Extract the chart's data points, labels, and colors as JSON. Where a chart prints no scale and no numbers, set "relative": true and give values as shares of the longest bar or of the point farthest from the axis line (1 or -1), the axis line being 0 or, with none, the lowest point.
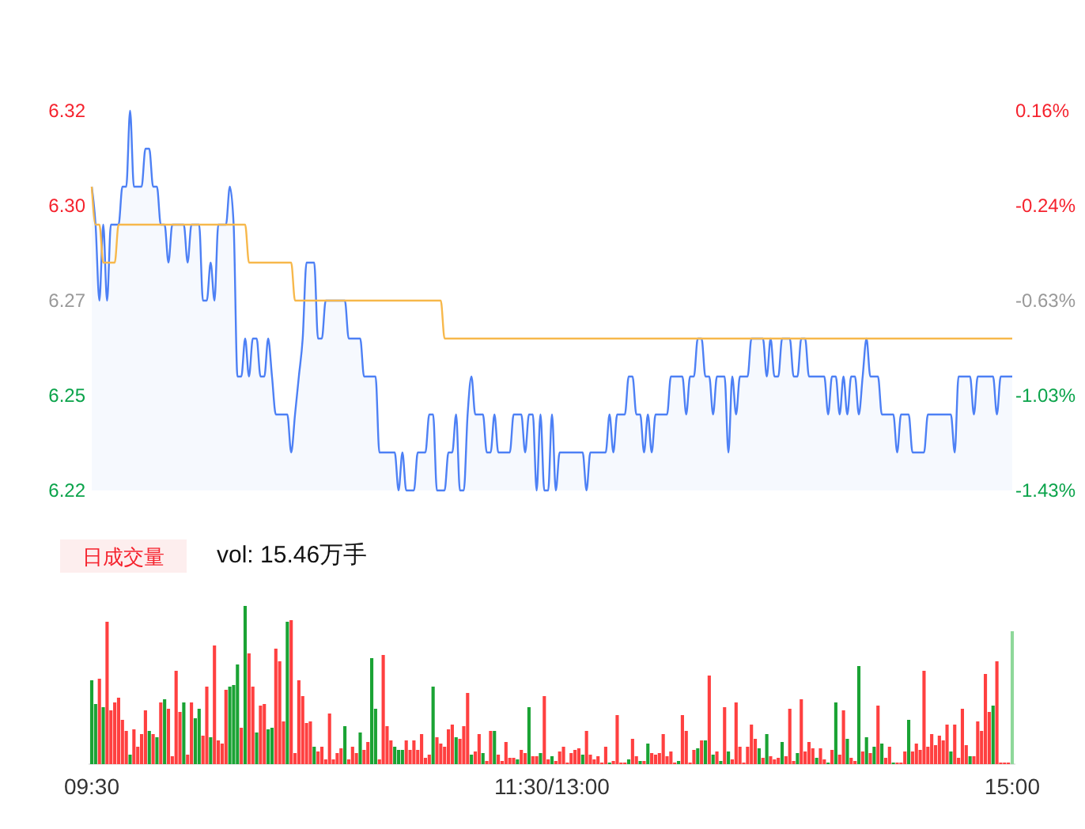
{
  "chart_data": [
    {
      "type": "area",
      "categories": [
        null,
        null,
        null,
        null,
        null,
        null,
        null,
        null,
        null,
        null,
        null,
        null,
        null,
        null,
        null,
        null,
        null,
        null,
        null,
        null,
        null,
        null,
        null,
        null,
        null,
        null,
        null,
        null,
        null,
        null,
        null,
        null,
        null,
        null,
        null,
        null,
        null,
        null,
        null,
        null,
        null,
        null,
        null,
        null,
        null,
        null,
        null,
        null,
        null,
        null,
        null,
        null,
        null,
        null,
        null,
        null,
        null,
        null,
        null,
        null,
        null,
        null,
        null,
        null,
        null,
        null,
        null,
        null,
        null,
        null,
        null,
        null,
        null,
        null,
        null,
        null,
        null,
        null,
        null,
        null,
        null,
        null,
        null,
        null,
        null,
        null,
        null,
        null,
        null,
        null,
        null,
        null,
        null,
        null,
        null,
        null,
        null,
        null,
        null,
        null,
        null,
        null,
        null,
        null,
        null,
        null,
        null,
        null,
        null,
        null,
        null,
        null,
        null,
        null,
        null,
        null,
        null,
        null,
        null,
        null,
        null,
        null,
        null,
        null,
        null,
        null,
        null,
        null,
        null,
        null,
        null,
        null,
        null,
        null,
        null,
        null,
        null,
        null,
        null,
        null,
        null,
        null,
        null,
        null,
        null,
        null,
        null,
        null,
        null,
        null,
        null,
        null,
        null,
        null,
        null,
        null,
        null,
        null,
        null,
        null,
        null,
        null,
        null,
        null,
        null,
        null,
        null,
        null,
        null,
        null,
        null,
        null,
        null,
        null,
        null,
        null,
        null,
        null,
        null,
        null,
        null,
        null,
        null,
        null,
        null,
        null,
        null,
        null,
        null,
        null,
        null,
        null,
        null,
        null,
        null,
        null,
        null,
        null,
        null,
        null,
        null,
        null,
        null,
        null,
        null,
        null,
        null,
        null,
        null,
        null,
        null,
        null,
        null,
        null,
        null,
        null,
        null,
        null,
        null,
        null,
        null,
        null,
        null,
        null,
        null,
        null,
        null,
        null,
        null,
        null,
        null,
        null,
        null,
        null,
        null,
        null,
        null,
        null,
        null,
        null,
        null
      ],
      "ylim": [
        6.22,
        6.32
      ],
      "yticks": [
        6.32,
        {
          "value": 6.295,
          "label": "6.30"
        },
        6.27,
        {
          "value": 6.245,
          "label": "6.25"
        },
        6.22
      ],
      "y2lim": [
        -1.43,
        0.16
      ],
      "y2ticks": [
        {
          "value": 0.16,
          "label": "0.16%"
        },
        {
          "value": -0.2375,
          "label": "-0.24%"
        },
        {
          "value": -0.635,
          "label": "-0.63%"
        },
        {
          "value": -1.0325,
          "label": "-1.03%"
        },
        {
          "value": -1.43,
          "label": "-1.43%"
        }
      ],
      "tick_labels": "y",
      "series": [
        {
          "color": "#4d80f5",
          "values": [
            6.3,
            6.29,
            6.27,
            6.29,
            6.27,
            6.29,
            6.29,
            6.29,
            6.3,
            6.3,
            6.32,
            6.3,
            6.3,
            6.3,
            6.31,
            6.31,
            6.3,
            6.3,
            6.29,
            6.29,
            6.28,
            6.29,
            6.29,
            6.29,
            6.29,
            6.28,
            6.29,
            6.29,
            6.29,
            6.27,
            6.27,
            6.28,
            6.27,
            6.29,
            6.29,
            6.29,
            6.3,
            6.29,
            6.25,
            6.25,
            6.26,
            6.25,
            6.26,
            6.26,
            6.25,
            6.25,
            6.26,
            6.25,
            6.24,
            6.24,
            6.24,
            6.24,
            6.23,
            6.24,
            6.25,
            6.26,
            6.28,
            6.28,
            6.28,
            6.26,
            6.26,
            6.27,
            6.27,
            6.27,
            6.27,
            6.27,
            6.27,
            6.26,
            6.26,
            6.26,
            6.26,
            6.25,
            6.25,
            6.25,
            6.25,
            6.23,
            6.23,
            6.23,
            6.23,
            6.23,
            6.22,
            6.23,
            6.22,
            6.22,
            6.22,
            6.23,
            6.23,
            6.23,
            6.24,
            6.24,
            6.22,
            6.22,
            6.22,
            6.23,
            6.23,
            6.24,
            6.22,
            6.22,
            6.24,
            6.25,
            6.24,
            6.24,
            6.24,
            6.23,
            6.23,
            6.24,
            6.23,
            6.23,
            6.23,
            6.23,
            6.24,
            6.24,
            6.24,
            6.23,
            6.24,
            6.24,
            6.22,
            6.24,
            6.22,
            6.22,
            6.24,
            6.22,
            6.23,
            6.23,
            6.23,
            6.23,
            6.23,
            6.23,
            6.23,
            6.22,
            6.23,
            6.23,
            6.23,
            6.23,
            6.23,
            6.24,
            6.23,
            6.24,
            6.24,
            6.24,
            6.25,
            6.25,
            6.24,
            6.24,
            6.23,
            6.24,
            6.23,
            6.24,
            6.24,
            6.24,
            6.24,
            6.25,
            6.25,
            6.25,
            6.25,
            6.24,
            6.25,
            6.25,
            6.26,
            6.26,
            6.25,
            6.25,
            6.24,
            6.25,
            6.25,
            6.25,
            6.23,
            6.25,
            6.24,
            6.25,
            6.25,
            6.25,
            6.26,
            6.26,
            6.26,
            6.26,
            6.25,
            6.26,
            6.25,
            6.25,
            6.26,
            6.26,
            6.26,
            6.25,
            6.25,
            6.26,
            6.26,
            6.25,
            6.25,
            6.25,
            6.25,
            6.25,
            6.24,
            6.25,
            6.25,
            6.24,
            6.25,
            6.24,
            6.25,
            6.25,
            6.24,
            6.25,
            6.26,
            6.25,
            6.25,
            6.25,
            6.24,
            6.24,
            6.24,
            6.24,
            6.23,
            6.24,
            6.24,
            6.24,
            6.23,
            6.23,
            6.23,
            6.23,
            6.24,
            6.24,
            6.24,
            6.24,
            6.24,
            6.24,
            6.24,
            6.23,
            6.25,
            6.25,
            6.25,
            6.25,
            6.24,
            6.25,
            6.25,
            6.25,
            6.25,
            6.25,
            6.24,
            6.25,
            6.25,
            6.25,
            6.25
          ]
        },
        {
          "type": "line",
          "color": "#f7b84b",
          "values": [
            6.3,
            6.29,
            6.29,
            6.28,
            6.28,
            6.28,
            6.28,
            6.29,
            6.29,
            6.29,
            6.29,
            6.29,
            6.29,
            6.29,
            6.29,
            6.29,
            6.29,
            6.29,
            6.29,
            6.29,
            6.29,
            6.29,
            6.29,
            6.29,
            6.29,
            6.29,
            6.29,
            6.29,
            6.29,
            6.29,
            6.29,
            6.29,
            6.29,
            6.29,
            6.29,
            6.29,
            6.29,
            6.29,
            6.29,
            6.29,
            6.29,
            6.28,
            6.28,
            6.28,
            6.28,
            6.28,
            6.28,
            6.28,
            6.28,
            6.28,
            6.28,
            6.28,
            6.28,
            6.27,
            6.27,
            6.27,
            6.27,
            6.27,
            6.27,
            6.27,
            6.27,
            6.27,
            6.27,
            6.27,
            6.27,
            6.27,
            6.27,
            6.27,
            6.27,
            6.27,
            6.27,
            6.27,
            6.27,
            6.27,
            6.27,
            6.27,
            6.27,
            6.27,
            6.27,
            6.27,
            6.27,
            6.27,
            6.27,
            6.27,
            6.27,
            6.27,
            6.27,
            6.27,
            6.27,
            6.27,
            6.27,
            6.27,
            6.26,
            6.26,
            6.26,
            6.26,
            6.26,
            6.26,
            6.26,
            6.26,
            6.26,
            6.26,
            6.26,
            6.26,
            6.26,
            6.26,
            6.26,
            6.26,
            6.26,
            6.26,
            6.26,
            6.26,
            6.26,
            6.26,
            6.26,
            6.26,
            6.26,
            6.26,
            6.26,
            6.26,
            6.26,
            6.26,
            6.26,
            6.26,
            6.26,
            6.26,
            6.26,
            6.26,
            6.26,
            6.26,
            6.26,
            6.26,
            6.26,
            6.26,
            6.26,
            6.26,
            6.26,
            6.26,
            6.26,
            6.26,
            6.26,
            6.26,
            6.26,
            6.26,
            6.26,
            6.26,
            6.26,
            6.26,
            6.26,
            6.26,
            6.26,
            6.26,
            6.26,
            6.26,
            6.26,
            6.26,
            6.26,
            6.26,
            6.26,
            6.26,
            6.26,
            6.26,
            6.26,
            6.26,
            6.26,
            6.26,
            6.26,
            6.26,
            6.26,
            6.26,
            6.26,
            6.26,
            6.26,
            6.26,
            6.26,
            6.26,
            6.26,
            6.26,
            6.26,
            6.26,
            6.26,
            6.26,
            6.26,
            6.26,
            6.26,
            6.26,
            6.26,
            6.26,
            6.26,
            6.26,
            6.26,
            6.26,
            6.26,
            6.26,
            6.26,
            6.26,
            6.26,
            6.26,
            6.26,
            6.26,
            6.26,
            6.26,
            6.26,
            6.26,
            6.26,
            6.26,
            6.26,
            6.26,
            6.26,
            6.26,
            6.26,
            6.26,
            6.26,
            6.26,
            6.26,
            6.26,
            6.26,
            6.26,
            6.26,
            6.26,
            6.26,
            6.26,
            6.26,
            6.26,
            6.26,
            6.26,
            6.26,
            6.26,
            6.26,
            6.26,
            6.26,
            6.26,
            6.26,
            6.26,
            6.26,
            6.26,
            6.26,
            6.26,
            6.26,
            6.26,
            6.26
          ]
        }
      ]
    },
    {
      "type": "bar",
      "relative": true,
      "categories": [
        "09:30",
        null,
        null,
        null,
        null,
        null,
        null,
        null,
        null,
        null,
        null,
        null,
        null,
        null,
        null,
        null,
        null,
        null,
        null,
        null,
        null,
        null,
        null,
        null,
        null,
        null,
        null,
        null,
        null,
        null,
        null,
        null,
        null,
        null,
        null,
        null,
        null,
        null,
        null,
        null,
        null,
        null,
        null,
        null,
        null,
        null,
        null,
        null,
        null,
        null,
        null,
        null,
        null,
        null,
        null,
        null,
        null,
        null,
        null,
        null,
        null,
        null,
        null,
        null,
        null,
        null,
        null,
        null,
        null,
        null,
        null,
        null,
        null,
        null,
        null,
        null,
        null,
        null,
        null,
        null,
        null,
        null,
        null,
        null,
        null,
        null,
        null,
        null,
        null,
        null,
        null,
        null,
        null,
        null,
        null,
        null,
        null,
        null,
        null,
        null,
        null,
        null,
        null,
        null,
        null,
        null,
        null,
        null,
        null,
        null,
        null,
        null,
        null,
        null,
        null,
        null,
        null,
        null,
        null,
        null,
        "11:30/13:00",
        null,
        null,
        null,
        null,
        null,
        null,
        null,
        null,
        null,
        null,
        null,
        null,
        null,
        null,
        null,
        null,
        null,
        null,
        null,
        null,
        null,
        null,
        null,
        null,
        null,
        null,
        null,
        null,
        null,
        null,
        null,
        null,
        null,
        null,
        null,
        null,
        null,
        null,
        null,
        null,
        null,
        null,
        null,
        null,
        null,
        null,
        null,
        null,
        null,
        null,
        null,
        null,
        null,
        null,
        null,
        null,
        null,
        null,
        null,
        null,
        null,
        null,
        null,
        null,
        null,
        null,
        null,
        null,
        null,
        null,
        null,
        null,
        null,
        null,
        null,
        null,
        null,
        null,
        null,
        null,
        null,
        null,
        null,
        null,
        null,
        null,
        null,
        null,
        null,
        null,
        null,
        null,
        null,
        null,
        null,
        null,
        null,
        null,
        null,
        null,
        null,
        null,
        null,
        null,
        null,
        null,
        null,
        null,
        null,
        null,
        null,
        null,
        null,
        null,
        null,
        null,
        null,
        null,
        null,
        "15:00"
      ],
      "annotations": [
        "日成交量",
        "vol: 15.46万手"
      ],
      "values": [
        0.53,
        0.38,
        0.54,
        0.36,
        0.9,
        0.34,
        0.39,
        0.42,
        0.28,
        0.21,
        0.06,
        0.22,
        0.11,
        0.19,
        0.34,
        0.21,
        0.19,
        0.17,
        0.39,
        0.41,
        0.35,
        0.05,
        0.59,
        0.33,
        0.39,
        0.06,
        0.39,
        0.29,
        0.35,
        0.18,
        0.49,
        0.17,
        0.75,
        0.15,
        0.13,
        0.47,
        0.49,
        0.5,
        0.63,
        0.23,
        1.0,
        0.7,
        0.49,
        0.2,
        0.37,
        0.38,
        0.22,
        0.23,
        0.73,
        0.65,
        0.27,
        0.9,
        0.91,
        0.07,
        0.53,
        0.43,
        0.26,
        0.27,
        0.11,
        0.08,
        0.11,
        0.03,
        0.32,
        0.03,
        0.07,
        0.1,
        0.24,
        0.03,
        0.11,
        0.07,
        0.2,
        0.09,
        0.14,
        0.67,
        0.35,
        0.03,
        0.69,
        0.24,
        0.15,
        0.11,
        0.09,
        0.09,
        0.15,
        0.09,
        0.15,
        0.09,
        0.19,
        0.04,
        0.06,
        0.49,
        0.17,
        0.13,
        0.11,
        0.22,
        0.25,
        0.17,
        0.16,
        0.24,
        0.45,
        0.06,
        0.08,
        0.19,
        0.07,
        0.02,
        0.21,
        0.21,
        0.06,
        0.02,
        0.14,
        0.04,
        0.04,
        0.03,
        0.09,
        0.07,
        0.36,
        0.05,
        0.05,
        0.07,
        0.43,
        0.03,
        0.05,
        0.02,
        0.08,
        0.11,
        0.01,
        0.07,
        0.09,
        0.1,
        0.06,
        0.21,
        0.06,
        0.03,
        0.05,
        0.01,
        0.11,
        0.01,
        0.02,
        0.31,
        0.01,
        0.01,
        0.03,
        0.16,
        0.05,
        0.02,
        0.02,
        0.13,
        0.07,
        0.06,
        0.07,
        0.19,
        0.05,
        0.08,
        0.01,
        0.02,
        0.31,
        0.21,
        0.01,
        0.09,
        0.1,
        0.15,
        0.15,
        0.56,
        0.06,
        0.08,
        0.02,
        0.36,
        0.08,
        0.03,
        0.39,
        0.11,
        0.01,
        0.11,
        0.25,
        0.16,
        0.1,
        0.04,
        0.19,
        0.05,
        0.03,
        0.04,
        0.14,
        0.05,
        0.35,
        0.02,
        0.07,
        0.41,
        0.08,
        0.14,
        0.1,
        0.04,
        0.1,
        0.03,
        0.01,
        0.09,
        0.39,
        0.06,
        0.34,
        0.16,
        0.04,
        0.02,
        0.62,
        0.08,
        0.17,
        0.07,
        0.11,
        0.37,
        0.13,
        0.04,
        0.11,
        0.01,
        0.01,
        0.01,
        0.08,
        0.28,
        0.08,
        0.13,
        0.09,
        0.59,
        0.11,
        0.19,
        0.12,
        0.18,
        0.15,
        0.25,
        0.08,
        0.25,
        0.04,
        0.35,
        0.12,
        0.05,
        0.05,
        0.27,
        0.21,
        0.57,
        0.33,
        0.37,
        0.65,
        0.01,
        0.01,
        0.01,
        0.84
      ],
      "colors": [
        "#1aa334",
        "#1aa334",
        "#ff4040",
        "#1aa334",
        "#ff4040",
        "#ff4040",
        "#ff4040",
        "#ff4040",
        "#ff4040",
        "#ff4040",
        "#1aa334",
        "#ff4040",
        "#ff4040",
        "#ff4040",
        "#ff4040",
        "#1aa334",
        "#ff4040",
        "#1aa334",
        "#ff4040",
        "#1aa334",
        "#ff4040",
        "#ff4040",
        "#ff4040",
        "#ff4040",
        "#1aa334",
        "#ff4040",
        "#ff4040",
        "#1aa334",
        "#1aa334",
        "#ff4040",
        "#ff4040",
        "#1aa334",
        "#ff4040",
        "#ff4040",
        "#ff4040",
        "#ff4040",
        "#1aa334",
        "#1aa334",
        "#1aa334",
        "#ff4040",
        "#1aa334",
        "#ff4040",
        "#ff4040",
        "#1aa334",
        "#ff4040",
        "#ff4040",
        "#1aa334",
        "#1aa334",
        "#ff4040",
        "#ff4040",
        "#ff4040",
        "#1aa334",
        "#ff4040",
        "#ff4040",
        "#ff4040",
        "#ff4040",
        "#ff4040",
        "#ff4040",
        "#1aa334",
        "#ff4040",
        "#ff4040",
        "#ff4040",
        "#ff4040",
        "#ff4040",
        "#ff4040",
        "#ff4040",
        "#1aa334",
        "#ff4040",
        "#ff4040",
        "#ff4040",
        "#1aa334",
        "#ff4040",
        "#ff4040",
        "#1aa334",
        "#1aa334",
        "#ff4040",
        "#ff4040",
        "#ff4040",
        "#ff4040",
        "#1aa334",
        "#1aa334",
        "#1aa334",
        "#ff4040",
        "#ff4040",
        "#ff4040",
        "#ff4040",
        "#ff4040",
        "#ff4040",
        "#ff4040",
        "#1aa334",
        "#ff4040",
        "#ff4040",
        "#ff4040",
        "#ff4040",
        "#ff4040",
        "#1aa334",
        "#ff4040",
        "#ff4040",
        "#ff4040",
        "#1aa334",
        "#ff4040",
        "#ff4040",
        "#1aa334",
        "#ff4040",
        "#ff4040",
        "#1aa334",
        "#ff4040",
        "#ff4040",
        "#ff4040",
        "#ff4040",
        "#ff4040",
        "#1aa334",
        "#ff4040",
        "#ff4040",
        "#1aa334",
        "#ff4040",
        "#ff4040",
        "#1aa334",
        "#ff4040",
        "#ff4040",
        "#1aa334",
        "#ff4040",
        "#ff4040",
        "#ff4040",
        "#ff4040",
        "#ff4040",
        "#ff4040",
        "#ff4040",
        "#1aa334",
        "#ff4040",
        "#ff4040",
        "#ff4040",
        "#ff4040",
        "#ff4040",
        "#ff4040",
        "#1aa334",
        "#ff4040",
        "#ff4040",
        "#ff4040",
        "#ff4040",
        "#1aa334",
        "#ff4040",
        "#ff4040",
        "#1aa334",
        "#ff4040",
        "#1aa334",
        "#ff4040",
        "#ff4040",
        "#ff4040",
        "#ff4040",
        "#ff4040",
        "#ff4040",
        "#ff4040",
        "#1aa334",
        "#ff4040",
        "#ff4040",
        "#ff4040",
        "#ff4040",
        "#1aa334",
        "#ff4040",
        "#1aa334",
        "#ff4040",
        "#1aa334",
        "#ff4040",
        "#1aa334",
        "#ff4040",
        "#1aa334",
        "#ff4040",
        "#ff4040",
        "#ff4040",
        "#ff4040",
        "#ff4040",
        "#ff4040",
        "#ff4040",
        "#1aa334",
        "#ff4040",
        "#1aa334",
        "#ff4040",
        "#ff4040",
        "#ff4040",
        "#1aa334",
        "#ff4040",
        "#ff4040",
        "#ff4040",
        "#1aa334",
        "#ff4040",
        "#ff4040",
        "#ff4040",
        "#ff4040",
        "#1aa334",
        "#ff4040",
        "#ff4040",
        "#1aa334",
        "#ff4040",
        "#1aa334",
        "#ff4040",
        "#ff4040",
        "#1aa334",
        "#ff4040",
        "#ff4040",
        "#1aa334",
        "#ff4040",
        "#1aa334",
        "#ff4040",
        "#1aa334",
        "#ff4040",
        "#1aa334",
        "#ff4040",
        "#ff4040",
        "#1aa334",
        "#ff4040",
        "#ff4040",
        "#ff4040",
        "#1aa334",
        "#ff4040",
        "#ff4040",
        "#ff4040",
        "#ff4040",
        "#ff4040",
        "#ff4040",
        "#ff4040",
        "#ff4040",
        "#ff4040",
        "#ff4040",
        "#1aa334",
        "#ff4040",
        "#ff4040",
        "#ff4040",
        "#ff4040",
        "#1aa334",
        "#ff4040",
        "#ff4040",
        "#ff4040",
        "#ff4040",
        "#ff4040",
        "#1aa334",
        "#ff4040",
        "#ff4040",
        "#ff4040",
        "#ff4040",
        "#8ed89a"
      ]
    }
  ]
}
